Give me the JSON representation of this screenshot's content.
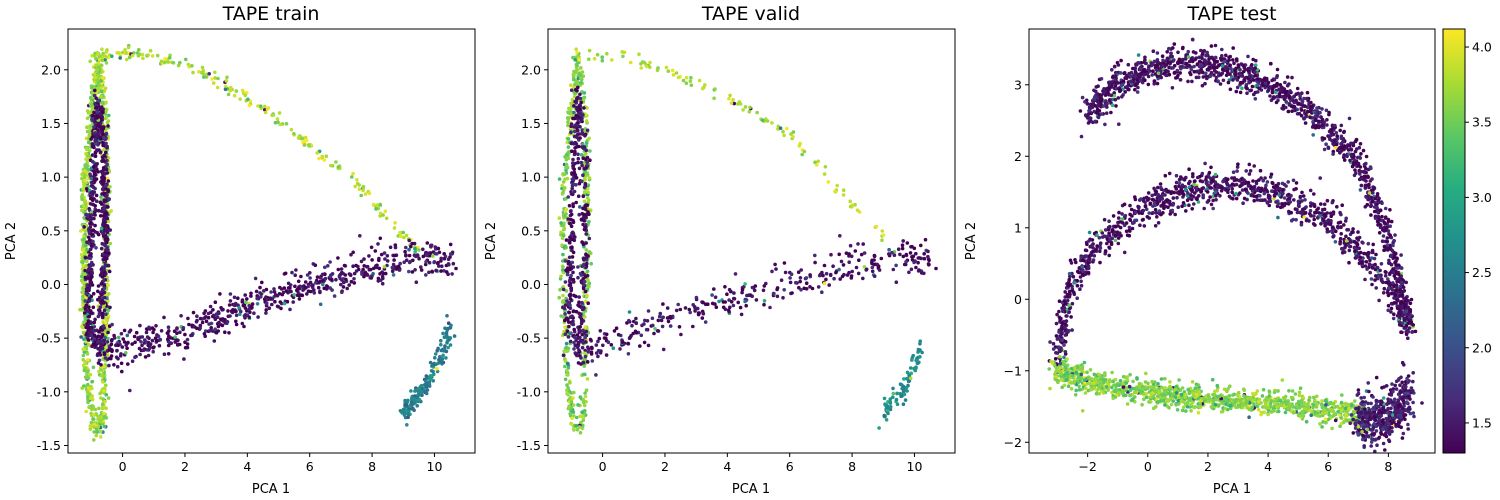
{
  "chart_data": [
    {
      "type": "scatter",
      "title": "TAPE train",
      "xlabel": "PCA 1",
      "ylabel": "PCA 2",
      "xlim": [
        -1.75,
        11.3
      ],
      "ylim": [
        -1.57,
        2.38
      ],
      "xticks": [
        0,
        2,
        4,
        6,
        8,
        10
      ],
      "yticks": [
        -1.5,
        -1.0,
        -0.5,
        0.0,
        0.5,
        1.0,
        1.5,
        2.0
      ],
      "ytick_labels": [
        "-1.5",
        "-1.0",
        "-0.5",
        "0.0",
        "0.5",
        "1.0",
        "1.5",
        "2.0"
      ],
      "xtick_labels": [
        "0",
        "2",
        "4",
        "6",
        "8",
        "10"
      ],
      "structures": [
        {
          "kind": "outer_loop",
          "points": [
            [
              -0.8,
              2.1
            ],
            [
              -1.2,
              1.0
            ],
            [
              -1.25,
              0.0
            ],
            [
              -1.1,
              -1.0
            ],
            [
              -0.9,
              -1.35
            ],
            [
              -0.65,
              -1.3
            ],
            [
              -0.55,
              -0.5
            ],
            [
              -0.5,
              0.6
            ],
            [
              -0.55,
              1.5
            ],
            [
              -0.8,
              2.12
            ]
          ],
          "value": 3.7
        },
        {
          "kind": "inner_loop",
          "points": [
            [
              -0.8,
              1.7
            ],
            [
              -1.0,
              0.5
            ],
            [
              -1.1,
              -0.4
            ],
            [
              -0.75,
              -0.6
            ],
            [
              -0.55,
              0.2
            ],
            [
              -0.6,
              1.3
            ],
            [
              -0.8,
              1.7
            ]
          ],
          "value": 1.4
        },
        {
          "kind": "arc",
          "points": [
            [
              -0.8,
              2.12
            ],
            [
              0.5,
              2.15
            ],
            [
              2.0,
              2.05
            ],
            [
              4.0,
              1.75
            ],
            [
              6.0,
              1.3
            ],
            [
              7.5,
              0.95
            ],
            [
              9.0,
              0.45
            ],
            [
              9.5,
              0.3
            ]
          ],
          "value": 3.8
        },
        {
          "kind": "band",
          "points": [
            [
              -0.8,
              -0.62
            ],
            [
              0.5,
              -0.55
            ],
            [
              2.0,
              -0.45
            ],
            [
              4.0,
              -0.2
            ],
            [
              6.0,
              0.0
            ],
            [
              8.0,
              0.15
            ],
            [
              9.5,
              0.28
            ],
            [
              10.6,
              0.2
            ]
          ],
          "value": 1.4
        },
        {
          "kind": "branch",
          "points": [
            [
              9.0,
              -1.18
            ],
            [
              9.6,
              -1.0
            ],
            [
              10.2,
              -0.7
            ],
            [
              10.5,
              -0.4
            ]
          ],
          "value": 2.5
        }
      ]
    },
    {
      "type": "scatter",
      "title": "TAPE valid",
      "xlabel": "PCA 1",
      "ylabel": "PCA 2",
      "xlim": [
        -1.75,
        11.3
      ],
      "ylim": [
        -1.57,
        2.38
      ],
      "xticks": [
        0,
        2,
        4,
        6,
        8,
        10
      ],
      "yticks": [
        -1.5,
        -1.0,
        -0.5,
        0.0,
        0.5,
        1.0,
        1.5,
        2.0
      ],
      "ytick_labels": [
        "-1.5",
        "-1.0",
        "-0.5",
        "0.0",
        "0.5",
        "1.0",
        "1.5",
        "2.0"
      ],
      "xtick_labels": [
        "0",
        "2",
        "4",
        "6",
        "8",
        "10"
      ],
      "structures": [
        {
          "kind": "outer_loop",
          "points": [
            [
              -0.8,
              2.1
            ],
            [
              -1.2,
              1.0
            ],
            [
              -1.25,
              0.0
            ],
            [
              -1.1,
              -1.0
            ],
            [
              -0.9,
              -1.35
            ],
            [
              -0.65,
              -1.3
            ],
            [
              -0.55,
              -0.5
            ],
            [
              -0.5,
              0.6
            ],
            [
              -0.55,
              1.5
            ],
            [
              -0.8,
              2.12
            ]
          ],
          "value": 3.6
        },
        {
          "kind": "inner_loop",
          "points": [
            [
              -0.8,
              1.75
            ],
            [
              -1.0,
              0.5
            ],
            [
              -1.1,
              -0.4
            ],
            [
              -0.75,
              -0.6
            ],
            [
              -0.55,
              0.2
            ],
            [
              -0.6,
              1.3
            ],
            [
              -0.8,
              1.75
            ]
          ],
          "value": 1.4
        },
        {
          "kind": "arc",
          "points": [
            [
              -0.8,
              2.12
            ],
            [
              0.5,
              2.15
            ],
            [
              2.0,
              2.0
            ],
            [
              4.0,
              1.75
            ],
            [
              6.0,
              1.4
            ],
            [
              7.5,
              0.9
            ],
            [
              9.0,
              0.45
            ],
            [
              9.5,
              0.3
            ]
          ],
          "value": 3.8
        },
        {
          "kind": "band",
          "points": [
            [
              -0.8,
              -0.62
            ],
            [
              0.5,
              -0.5
            ],
            [
              2.0,
              -0.35
            ],
            [
              4.0,
              -0.15
            ],
            [
              6.0,
              0.0
            ],
            [
              8.0,
              0.15
            ],
            [
              9.5,
              0.28
            ],
            [
              10.6,
              0.2
            ]
          ],
          "value": 1.4
        },
        {
          "kind": "branch",
          "points": [
            [
              9.0,
              -1.2
            ],
            [
              9.6,
              -1.0
            ],
            [
              10.1,
              -0.7
            ],
            [
              10.3,
              -0.5
            ]
          ],
          "value": 2.7
        }
      ]
    },
    {
      "type": "scatter",
      "title": "TAPE test",
      "xlabel": "PCA 1",
      "ylabel": "PCA 2",
      "xlim": [
        -3.95,
        9.55
      ],
      "ylim": [
        -2.15,
        3.78
      ],
      "xticks": [
        -2,
        0,
        2,
        4,
        6,
        8
      ],
      "yticks": [
        -2,
        -1,
        0,
        1,
        2,
        3
      ],
      "xtick_labels": [
        "−2",
        "0",
        "2",
        "4",
        "6",
        "8"
      ],
      "ytick_labels": [
        "−2",
        "−1",
        "0",
        "1",
        "2",
        "3"
      ],
      "structures": [
        {
          "kind": "upper_arc",
          "points": [
            [
              -2.0,
              2.6
            ],
            [
              -1.0,
              3.0
            ],
            [
              0.0,
              3.2
            ],
            [
              1.0,
              3.3
            ],
            [
              2.5,
              3.25
            ],
            [
              4.0,
              3.0
            ],
            [
              5.5,
              2.6
            ],
            [
              7.0,
              1.9
            ],
            [
              8.0,
              0.9
            ],
            [
              8.7,
              -0.4
            ]
          ],
          "value": 1.4
        },
        {
          "kind": "middle_arc",
          "points": [
            [
              -3.0,
              -0.9
            ],
            [
              -2.7,
              0.0
            ],
            [
              -2.0,
              0.6
            ],
            [
              -1.0,
              1.0
            ],
            [
              0.0,
              1.3
            ],
            [
              1.5,
              1.55
            ],
            [
              3.0,
              1.6
            ],
            [
              4.5,
              1.45
            ],
            [
              6.0,
              1.1
            ],
            [
              7.0,
              0.7
            ],
            [
              8.0,
              0.2
            ],
            [
              8.8,
              -0.45
            ]
          ],
          "value": 1.4
        },
        {
          "kind": "lower_band",
          "points": [
            [
              -3.1,
              -1.0
            ],
            [
              -2.0,
              -1.15
            ],
            [
              0.0,
              -1.3
            ],
            [
              2.0,
              -1.4
            ],
            [
              4.0,
              -1.45
            ],
            [
              6.0,
              -1.55
            ],
            [
              7.2,
              -1.6
            ]
          ],
          "value": 3.6
        },
        {
          "kind": "tail_blob",
          "points": [
            [
              7.0,
              -1.7
            ],
            [
              7.8,
              -1.7
            ],
            [
              8.4,
              -1.55
            ],
            [
              8.7,
              -1.3
            ]
          ],
          "value": 1.5
        }
      ]
    }
  ],
  "colorbar": {
    "min": 1.3,
    "max": 4.12,
    "ticks": [
      1.5,
      2.0,
      2.5,
      3.0,
      3.5,
      4.0
    ],
    "tick_labels": [
      "1.5",
      "2.0",
      "2.5",
      "3.0",
      "3.5",
      "4.0"
    ],
    "colormap": [
      "#440154",
      "#472c7a",
      "#3b518b",
      "#2c718e",
      "#21908d",
      "#27ad81",
      "#5cc863",
      "#aadc32",
      "#fde725"
    ]
  }
}
